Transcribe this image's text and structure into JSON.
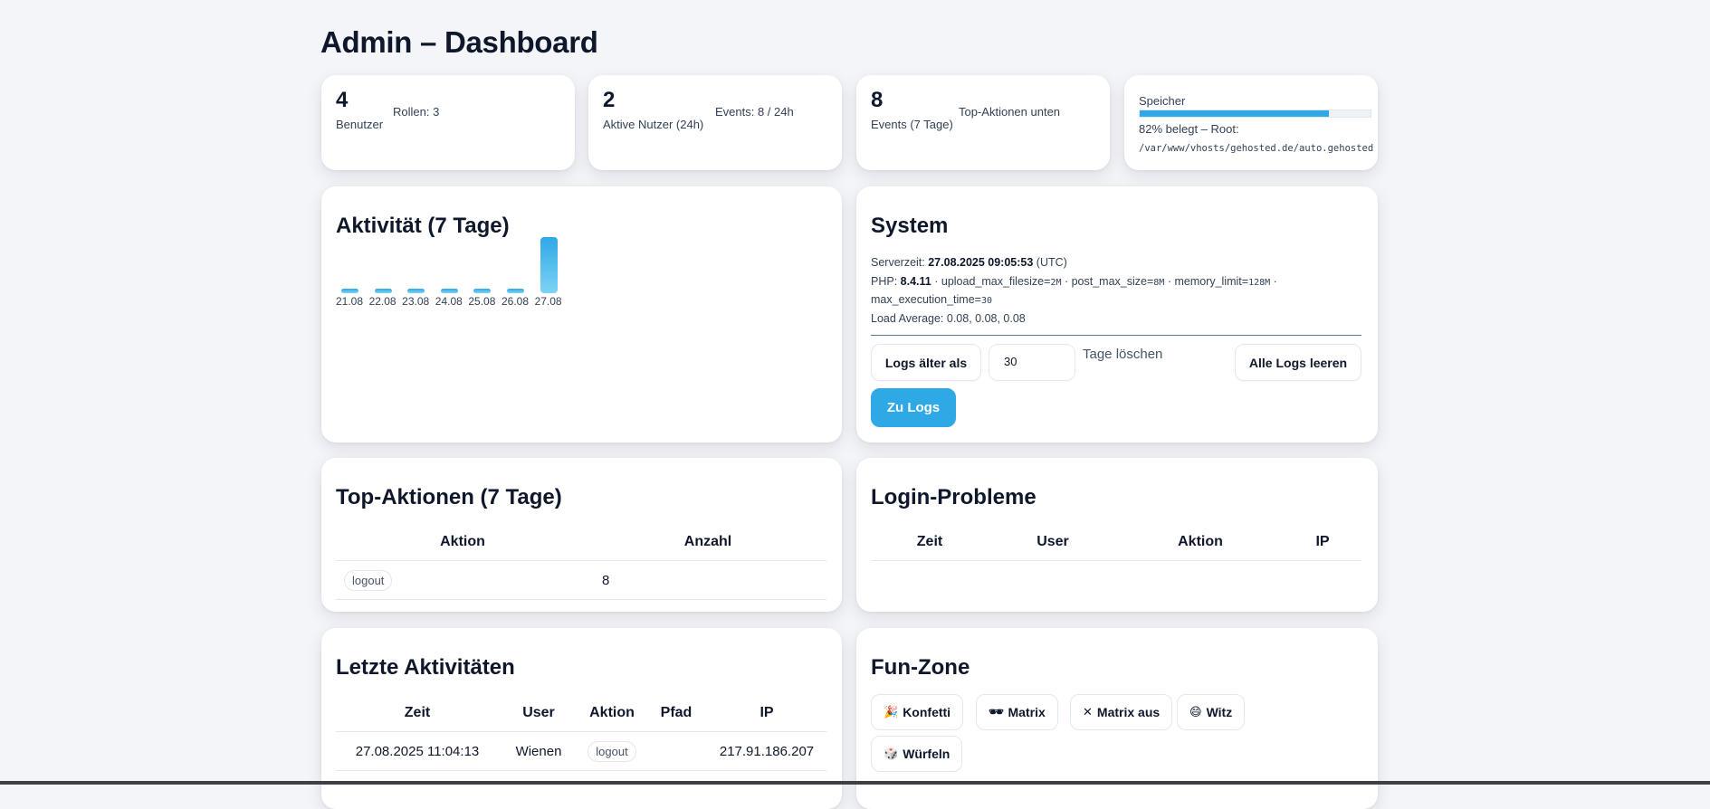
{
  "header": {
    "title": "Admin – Dashboard"
  },
  "stats": [
    {
      "number": "4",
      "label": "Benutzer",
      "meta": "Rollen: 3"
    },
    {
      "number": "2",
      "label": "Aktive Nutzer (24h)",
      "meta": "Events: 8 / 24h"
    },
    {
      "number": "8",
      "label": "Events (7 Tage)",
      "meta": "Top-Aktionen unten"
    }
  ],
  "storage": {
    "title": "Speicher",
    "used_percent": 82,
    "used_text": "82% belegt – Root:",
    "path": "/var/www/vhosts/gehosted.de/auto.gehosted",
    "bar_color": "#2fa8e6"
  },
  "activity": {
    "title": "Aktivität (7 Tage)",
    "chart_data": {
      "type": "bar",
      "categories": [
        "21.08",
        "22.08",
        "23.08",
        "24.08",
        "25.08",
        "26.08",
        "27.08"
      ],
      "values": [
        0,
        0,
        0,
        0,
        0,
        0,
        8
      ],
      "title": "Aktivität (7 Tage)",
      "xlabel": "",
      "ylabel": ""
    }
  },
  "system": {
    "title": "System",
    "server_time_label": "Serverzeit:",
    "server_time": "27.08.2025 09:05:53",
    "server_tz": "(UTC)",
    "php_label": "PHP:",
    "php_version": "8.4.11",
    "upload_label": "· upload_max_filesize=",
    "upload_val": "2M",
    "post_label": "· post_max_size=",
    "post_val": "8M",
    "mem_label": "· memory_limit=",
    "mem_val": "128M",
    "exec_label": "max_execution_time=",
    "exec_val": "30",
    "load": "Load Average: 0.08, 0.08, 0.08",
    "purge_button": "Logs älter als",
    "days_value": "30",
    "days_suffix": "Tage löschen",
    "clear_all_button": "Alle Logs leeren",
    "to_logs_button": "Zu Logs"
  },
  "top_actions": {
    "title": "Top-Aktionen (7 Tage)",
    "columns": [
      "Aktion",
      "Anzahl"
    ],
    "rows": [
      {
        "action": "logout",
        "count": "8"
      }
    ]
  },
  "login_problems": {
    "title": "Login-Probleme",
    "columns": [
      "Zeit",
      "User",
      "Aktion",
      "IP"
    ]
  },
  "recent": {
    "title": "Letzte Aktivitäten",
    "columns": [
      "Zeit",
      "User",
      "Aktion",
      "Pfad",
      "IP"
    ],
    "rows": [
      {
        "time": "27.08.2025 11:04:13",
        "user": "Wienen",
        "action": "logout",
        "path": "",
        "ip": "217.91.186.207"
      }
    ]
  },
  "fun": {
    "title": "Fun-Zone",
    "buttons": [
      {
        "icon": "🎉",
        "label": "Konfetti"
      },
      {
        "icon": "🕶",
        "label": "Matrix"
      },
      {
        "icon": "✕",
        "label": "Matrix aus"
      },
      {
        "icon": "😄",
        "label": "Witz"
      },
      {
        "icon": "🎲",
        "label": "Würfeln"
      }
    ]
  }
}
